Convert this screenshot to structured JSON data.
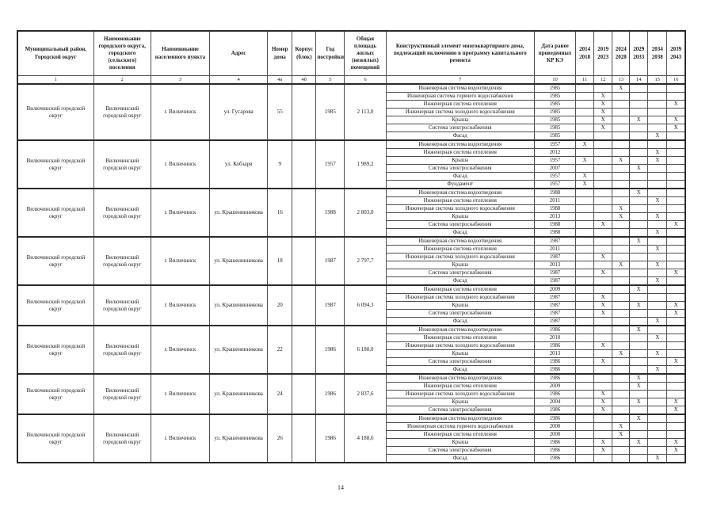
{
  "page": {
    "number": "14"
  },
  "table": {
    "headers": {
      "district": "Муниципальный район, Городской округ",
      "settlement": "Наименование городского округа, городского (сельского) поселения",
      "locality": "Наименование населенного пункта",
      "address": "Адрес",
      "house_number": "Номер дома",
      "block": "Корпус (блок)",
      "year_built": "Год постройки",
      "area": "Общая площадь жилых (нежилых) помещений",
      "element": "Конструктивный элемент многоквартирного дома, подлежащий включению в программу капитального ремонта",
      "prior_repair_date": "Дата ранее проведенных КР КЭ"
    },
    "periods": [
      {
        "from": "2014",
        "to": "2018"
      },
      {
        "from": "2019",
        "to": "2023"
      },
      {
        "from": "2024",
        "to": "2028"
      },
      {
        "from": "2029",
        "to": "2033"
      },
      {
        "from": "2034",
        "to": "2038"
      },
      {
        "from": "2039",
        "to": "2043"
      }
    ],
    "column_numbers": [
      "1",
      "2",
      "3",
      "4",
      "4а",
      "4б",
      "5",
      "6",
      "7",
      "10",
      "11",
      "12",
      "13",
      "14",
      "15",
      "16"
    ],
    "rows": [
      {
        "district": "Вилючинский городской округ",
        "settlement": "Вилючинский городской округ",
        "locality": "г. Вилючинск",
        "address": "ул. Гусарова",
        "house": "55",
        "block": "",
        "year_built": "1985",
        "area": "2 113,0",
        "elements": [
          {
            "name": "Инженерная система водоотведения",
            "date": "1985",
            "marks": [
              "2024"
            ]
          },
          {
            "name": "Инженерная система горячего водоснабжения",
            "date": "1985",
            "marks": [
              "2019"
            ]
          },
          {
            "name": "Инженерная система отопления",
            "date": "1985",
            "marks": [
              "2019",
              "2039"
            ]
          },
          {
            "name": "Инженерная система холодного водоснабжения",
            "date": "1985",
            "marks": [
              "2019"
            ]
          },
          {
            "name": "Крыша",
            "date": "1985",
            "marks": [
              "2019",
              "2029",
              "2039"
            ]
          },
          {
            "name": "Система электроснабжения",
            "date": "1985",
            "marks": [
              "2019",
              "2039"
            ]
          },
          {
            "name": "Фасад",
            "date": "1985",
            "marks": [
              "2034"
            ]
          }
        ]
      },
      {
        "district": "Вилючинский городской округ",
        "settlement": "Вилючинский городской округ",
        "locality": "г. Вилючинск",
        "address": "ул. Кобзаря",
        "house": "9",
        "block": "",
        "year_built": "1957",
        "area": "1 989,2",
        "elements": [
          {
            "name": "Инженерная система водоотведения",
            "date": "1957",
            "marks": [
              "2014"
            ]
          },
          {
            "name": "Инженерная система отопления",
            "date": "2012",
            "marks": [
              "2034"
            ]
          },
          {
            "name": "Крыша",
            "date": "1957",
            "marks": [
              "2014",
              "2024",
              "2034"
            ]
          },
          {
            "name": "Система электроснабжения",
            "date": "2007",
            "marks": [
              "2029"
            ]
          },
          {
            "name": "Фасад",
            "date": "1957",
            "marks": [
              "2014"
            ]
          },
          {
            "name": "Фундамент",
            "date": "1957",
            "marks": [
              "2014"
            ]
          }
        ]
      },
      {
        "district": "Вилючинский городской округ",
        "settlement": "Вилючинский городской округ",
        "locality": "г. Вилючинск",
        "address": "ул. Крашенинникова",
        "house": "16",
        "block": "",
        "year_built": "1988",
        "area": "2 803,0",
        "elements": [
          {
            "name": "Инженерная система водоотведения",
            "date": "1988",
            "marks": [
              "2029"
            ]
          },
          {
            "name": "Инженерная система отопления",
            "date": "2011",
            "marks": [
              "2034"
            ]
          },
          {
            "name": "Инженерная система холодного водоснабжения",
            "date": "1988",
            "marks": [
              "2024"
            ]
          },
          {
            "name": "Крыша",
            "date": "2013",
            "marks": [
              "2024",
              "2034"
            ]
          },
          {
            "name": "Система электроснабжения",
            "date": "1988",
            "marks": [
              "2019",
              "2039"
            ]
          },
          {
            "name": "Фасад",
            "date": "1988",
            "marks": [
              "2034"
            ]
          }
        ]
      },
      {
        "district": "Вилючинский городской округ",
        "settlement": "Вилючинский городской округ",
        "locality": "г. Вилючинск",
        "address": "ул. Крашенинникова",
        "house": "18",
        "block": "",
        "year_built": "1987",
        "area": "2 797,7",
        "elements": [
          {
            "name": "Инженерная система водоотведения",
            "date": "1987",
            "marks": [
              "2029"
            ]
          },
          {
            "name": "Инженерная система отопления",
            "date": "2011",
            "marks": [
              "2034"
            ]
          },
          {
            "name": "Инженерная система холодного водоснабжения",
            "date": "1987",
            "marks": [
              "2019"
            ]
          },
          {
            "name": "Крыша",
            "date": "2013",
            "marks": [
              "2024",
              "2034"
            ]
          },
          {
            "name": "Система электроснабжения",
            "date": "1987",
            "marks": [
              "2019",
              "2039"
            ]
          },
          {
            "name": "Фасад",
            "date": "1987",
            "marks": [
              "2034"
            ]
          }
        ]
      },
      {
        "district": "Вилючинский городской округ",
        "settlement": "Вилючинский городской округ",
        "locality": "г. Вилючинск",
        "address": "ул. Крашенинникова",
        "house": "20",
        "block": "",
        "year_built": "1987",
        "area": "6 094,3",
        "elements": [
          {
            "name": "Инженерная система отопления",
            "date": "2009",
            "marks": [
              "2029"
            ]
          },
          {
            "name": "Инженерная система холодного водоснабжения",
            "date": "1987",
            "marks": [
              "2019"
            ]
          },
          {
            "name": "Крыша",
            "date": "1987",
            "marks": [
              "2019",
              "2029",
              "2039"
            ]
          },
          {
            "name": "Система электроснабжения",
            "date": "1987",
            "marks": [
              "2019",
              "2039"
            ]
          },
          {
            "name": "Фасад",
            "date": "1987",
            "marks": [
              "2034"
            ]
          }
        ]
      },
      {
        "district": "Вилючинский городской округ",
        "settlement": "Вилючинский городской округ",
        "locality": "г. Вилючинск",
        "address": "ул. Крашенинникова",
        "house": "22",
        "block": "",
        "year_built": "1986",
        "area": "6 180,0",
        "elements": [
          {
            "name": "Инженерная система водоотведения",
            "date": "1986",
            "marks": [
              "2029"
            ]
          },
          {
            "name": "Инженерная система отопления",
            "date": "2010",
            "marks": [
              "2034"
            ]
          },
          {
            "name": "Инженерная система холодного водоснабжения",
            "date": "1986",
            "marks": [
              "2019"
            ]
          },
          {
            "name": "Крыша",
            "date": "2013",
            "marks": [
              "2024",
              "2034"
            ]
          },
          {
            "name": "Система электроснабжения",
            "date": "1986",
            "marks": [
              "2019",
              "2039"
            ]
          },
          {
            "name": "Фасад",
            "date": "1986",
            "marks": [
              "2034"
            ]
          }
        ]
      },
      {
        "district": "Вилючинский городской округ",
        "settlement": "Вилючинский городской округ",
        "locality": "г. Вилючинск",
        "address": "ул. Крашенинникова",
        "house": "24",
        "block": "",
        "year_built": "1986",
        "area": "2 837,6",
        "elements": [
          {
            "name": "Инженерная система водоотведения",
            "date": "1986",
            "marks": [
              "2029"
            ]
          },
          {
            "name": "Инженерная система отопления",
            "date": "2009",
            "marks": [
              "2029"
            ]
          },
          {
            "name": "Инженерная система холодного водоснабжения",
            "date": "1986",
            "marks": [
              "2019"
            ]
          },
          {
            "name": "Крыша",
            "date": "2004",
            "marks": [
              "2019",
              "2029",
              "2039"
            ]
          },
          {
            "name": "Система электроснабжения",
            "date": "1986",
            "marks": [
              "2019",
              "2039"
            ]
          }
        ]
      },
      {
        "district": "Вилючинский городской округ",
        "settlement": "Вилючинский городской округ",
        "locality": "г. Вилючинск",
        "address": "ул. Крашенинникова",
        "house": "26",
        "block": "",
        "year_built": "1986",
        "area": "4 188,6",
        "elements": [
          {
            "name": "Инженерная система водоотведения",
            "date": "1986",
            "marks": [
              "2029"
            ]
          },
          {
            "name": "Инженерная система горячего водоснабжения",
            "date": "2000",
            "marks": [
              "2024"
            ]
          },
          {
            "name": "Инженерная система отопления",
            "date": "2000",
            "marks": [
              "2024"
            ]
          },
          {
            "name": "Крыша",
            "date": "1986",
            "marks": [
              "2019",
              "2029",
              "2039"
            ]
          },
          {
            "name": "Система электроснабжения",
            "date": "1986",
            "marks": [
              "2019",
              "2039"
            ]
          },
          {
            "name": "Фасад",
            "date": "1986",
            "marks": [
              "2034"
            ]
          }
        ]
      }
    ]
  }
}
